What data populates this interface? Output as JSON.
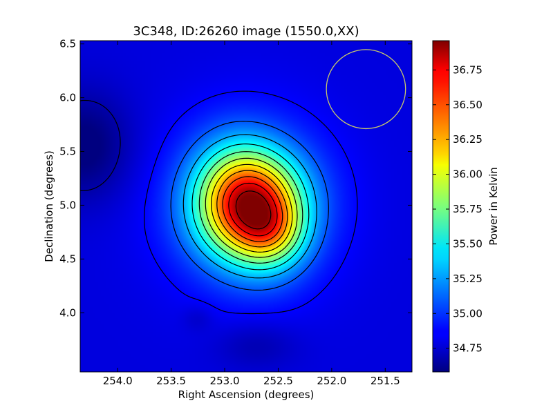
{
  "chart_data": {
    "type": "heatmap",
    "title": "3C348, ID:26260 image (1550.0,XX)",
    "xlabel": "Right Ascension (degrees)",
    "ylabel": "Declination (degrees)",
    "colorbar_label": "Power in Kelvin",
    "colormap": "jet",
    "x_range": [
      254.35,
      251.25
    ],
    "y_range": [
      3.45,
      6.53
    ],
    "x_ticks": [
      254.0,
      253.5,
      253.0,
      252.5,
      252.0,
      251.5
    ],
    "x_tick_labels": [
      "254.0",
      "253.5",
      "253.0",
      "252.5",
      "252.0",
      "251.5"
    ],
    "y_ticks": [
      4.0,
      4.5,
      5.0,
      5.5,
      6.0,
      6.5
    ],
    "y_tick_labels": [
      "4.0",
      "4.5",
      "5.0",
      "5.5",
      "6.0",
      "6.5"
    ],
    "color_range": [
      34.58,
      36.96
    ],
    "colorbar_ticks": [
      34.75,
      35.0,
      35.25,
      35.5,
      35.75,
      36.0,
      36.25,
      36.5,
      36.75
    ],
    "colorbar_tick_labels": [
      "34.75",
      "35.00",
      "35.25",
      "35.50",
      "35.75",
      "36.00",
      "36.25",
      "36.50",
      "36.75"
    ],
    "peak": {
      "ra": 252.77,
      "dec": 5.0,
      "value": 36.96
    },
    "contour_color": "#000000",
    "beam": {
      "ra": 251.68,
      "dec": 6.08,
      "radius_deg": 0.37,
      "color": "#c8c86a"
    }
  }
}
